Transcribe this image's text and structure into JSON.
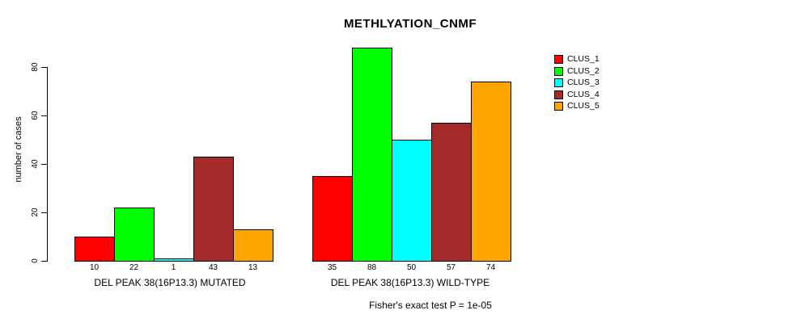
{
  "title": "METHLYATION_CNMF",
  "footer_note": "Fisher's exact test P = 1e-05",
  "colors": {
    "background": "#FFFFFF",
    "axis": "#000000",
    "text": "#000000"
  },
  "chart_data": {
    "type": "bar",
    "title": "METHLYATION_CNMF",
    "xlabel": "Fisher's exact test P = 1e-05",
    "ylabel": "number of cases",
    "ylim": [
      0,
      88
    ],
    "yticks": [
      0,
      20,
      40,
      60,
      80
    ],
    "grid": false,
    "legend_position": "top-right",
    "bar_value_labels_shown": true,
    "groups": [
      "DEL PEAK 38(16P13.3) MUTATED",
      "DEL PEAK 38(16P13.3) WILD-TYPE"
    ],
    "series": [
      {
        "name": "CLUS_1",
        "color": "#FF0000",
        "values": [
          10,
          35
        ]
      },
      {
        "name": "CLUS_2",
        "color": "#00FF00",
        "values": [
          22,
          88
        ]
      },
      {
        "name": "CLUS_3",
        "color": "#00FFFF",
        "values": [
          1,
          50
        ]
      },
      {
        "name": "CLUS_4",
        "color": "#A52A2A",
        "values": [
          43,
          57
        ]
      },
      {
        "name": "CLUS_5",
        "color": "#FFA500",
        "values": [
          13,
          74
        ]
      }
    ]
  }
}
